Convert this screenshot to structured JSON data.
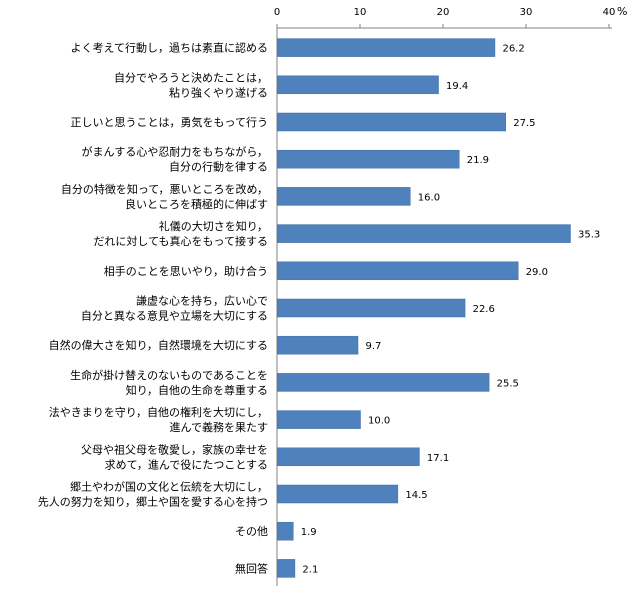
{
  "chart_data": {
    "type": "bar",
    "orientation": "horizontal",
    "unit": "%",
    "xlim": [
      0,
      40
    ],
    "x_ticks": [
      0,
      10,
      20,
      30,
      40
    ],
    "bar_color": "#4F81BD",
    "grid": false,
    "categories": [
      [
        "よく考えて行動し，過ちは素直に認める"
      ],
      [
        "自分でやろうと決めたことは，",
        "粘り強くやり遂げる"
      ],
      [
        "正しいと思うことは，勇気をもって行う"
      ],
      [
        "がまんする心や忍耐力をもちながら，",
        "自分の行動を律する"
      ],
      [
        "自分の特徴を知って，悪いところを改め，",
        "良いところを積極的に伸ばす"
      ],
      [
        "礼儀の大切さを知り，",
        "だれに対しても真心をもって接する"
      ],
      [
        "相手のことを思いやり，助け合う"
      ],
      [
        "謙虚な心を持ち，広い心で",
        "自分と異なる意見や立場を大切にする"
      ],
      [
        "自然の偉大さを知り，自然環境を大切にする"
      ],
      [
        "生命が掛け替えのないものであることを",
        "知り，自他の生命を尊重する"
      ],
      [
        "法やきまりを守り，自他の権利を大切にし，",
        "進んで義務を果たす"
      ],
      [
        "父母や祖父母を敬愛し，家族の幸せを",
        "求めて，進んで役にたつことする"
      ],
      [
        "郷土やわが国の文化と伝統を大切にし，",
        "先人の努力を知り，郷土や国を愛する心を持つ"
      ],
      [
        "その他"
      ],
      [
        "無回答"
      ]
    ],
    "values": [
      26.2,
      19.4,
      27.5,
      21.9,
      16.0,
      35.3,
      29.0,
      22.6,
      9.7,
      25.5,
      10.0,
      17.1,
      14.5,
      1.9,
      2.1
    ],
    "value_labels": [
      "26.2",
      "19.4",
      "27.5",
      "21.9",
      "16.0",
      "35.3",
      "29.0",
      "22.6",
      "9.7",
      "25.5",
      "10.0",
      "17.1",
      "14.5",
      "1.9",
      "2.1"
    ]
  }
}
